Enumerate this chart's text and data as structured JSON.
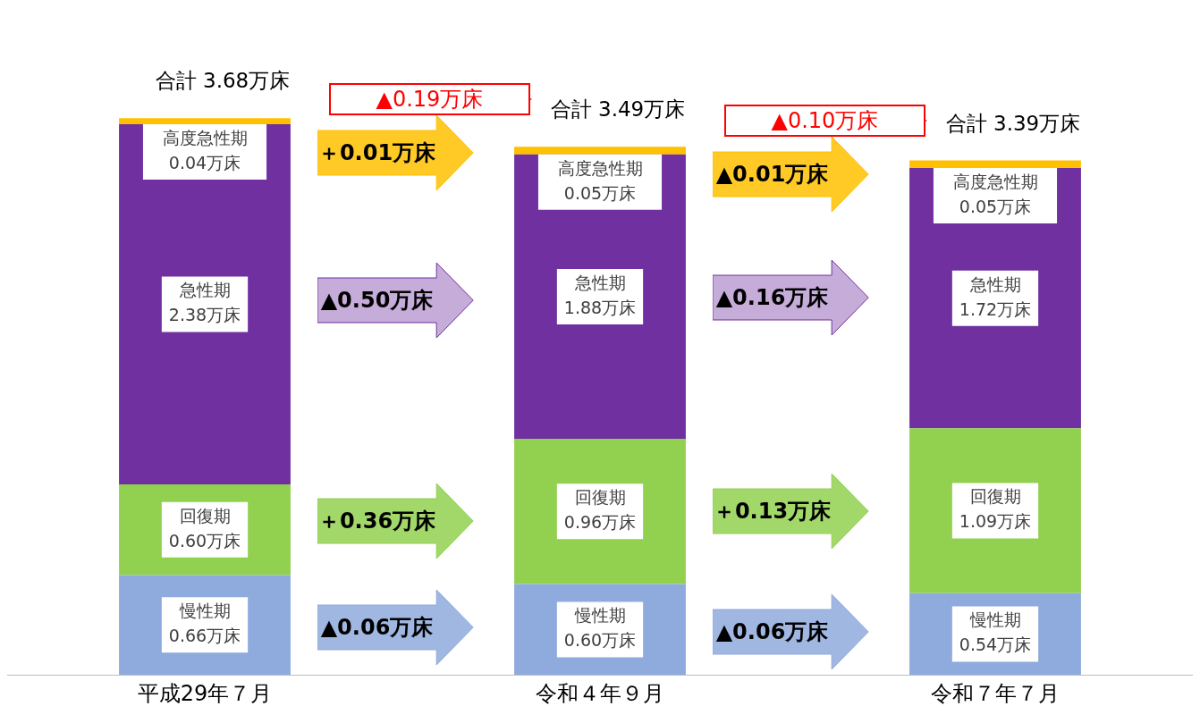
{
  "chart_data": {
    "type": "bar",
    "stacked": true,
    "legend": false,
    "grid": false,
    "categories": [
      "平成29年７月",
      "令和４年９月",
      "令和７年７月"
    ],
    "series": [
      {
        "name": "慢性期",
        "color": "#8faadc",
        "values": [
          0.66,
          0.6,
          0.54
        ],
        "value_labels": [
          "0.66万床",
          "0.60万床",
          "0.54万床"
        ]
      },
      {
        "name": "回復期",
        "color": "#92d050",
        "values": [
          0.6,
          0.96,
          1.09
        ],
        "value_labels": [
          "0.60万床",
          "0.96万床",
          "1.09万床"
        ]
      },
      {
        "name": "急性期",
        "color": "#7030a0",
        "values": [
          2.38,
          1.88,
          1.72
        ],
        "value_labels": [
          "2.38万床",
          "1.88万床",
          "1.72万床"
        ]
      },
      {
        "name": "高度急性期",
        "color": "#ffc000",
        "values": [
          0.04,
          0.05,
          0.05
        ],
        "value_labels": [
          "0.04万床",
          "0.05万床",
          "0.05万床"
        ]
      }
    ],
    "totals": [
      "合計 3.68万床",
      "合計 3.49万床",
      "合計 3.39万床"
    ],
    "annotations": [
      "▲0.06万床",
      "＋0.36万床",
      "▲0.50万床",
      "＋0.01万床",
      "▲0.06万床",
      "＋0.13万床",
      "▲0.16万床",
      "▲0.01万床",
      "▲0.19万床",
      "▲0.10万床"
    ]
  }
}
